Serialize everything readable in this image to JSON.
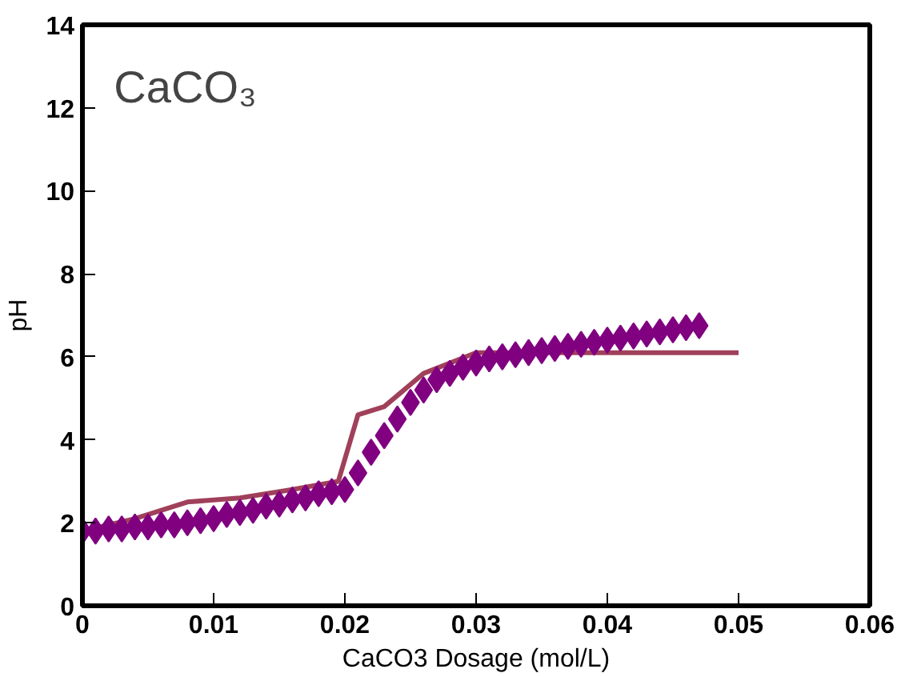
{
  "chart_data": {
    "type": "scatter",
    "xlabel": "CaCO3 Dosage (mol/L)",
    "ylabel": "pH",
    "annotations": [
      "CaCO₃"
    ],
    "xlim": [
      0,
      0.06
    ],
    "xticks": [
      0,
      0.01,
      0.02,
      0.03,
      0.04,
      0.05,
      0.06
    ],
    "ylim": [
      0,
      14
    ],
    "yticks": [
      0,
      2,
      4,
      6,
      8,
      10,
      12,
      14
    ],
    "grid": false,
    "series": [
      {
        "type": "line",
        "color": "#a0405a",
        "x": [
          0,
          0.004,
          0.008,
          0.012,
          0.016,
          0.0195,
          0.021,
          0.023,
          0.026,
          0.03,
          0.04,
          0.05
        ],
        "values": [
          1.8,
          2.1,
          2.5,
          2.6,
          2.8,
          3.0,
          4.6,
          4.8,
          5.6,
          6.1,
          6.1,
          6.1
        ]
      },
      {
        "color": "#800080",
        "marker": "diamond",
        "x": [
          0,
          0.001,
          0.002,
          0.003,
          0.004,
          0.005,
          0.006,
          0.007,
          0.008,
          0.009,
          0.01,
          0.011,
          0.012,
          0.013,
          0.014,
          0.015,
          0.016,
          0.017,
          0.018,
          0.019,
          0.02,
          0.021,
          0.022,
          0.023,
          0.024,
          0.025,
          0.026,
          0.027,
          0.028,
          0.029,
          0.03,
          0.031,
          0.032,
          0.033,
          0.034,
          0.035,
          0.036,
          0.037,
          0.038,
          0.039,
          0.04,
          0.041,
          0.042,
          0.043,
          0.044,
          0.045,
          0.046,
          0.047
        ],
        "values": [
          1.8,
          1.8,
          1.85,
          1.85,
          1.9,
          1.9,
          1.95,
          1.95,
          2.0,
          2.05,
          2.1,
          2.2,
          2.25,
          2.3,
          2.4,
          2.45,
          2.55,
          2.6,
          2.7,
          2.75,
          2.8,
          3.2,
          3.7,
          4.1,
          4.5,
          4.9,
          5.2,
          5.45,
          5.6,
          5.75,
          5.85,
          5.95,
          6.0,
          6.05,
          6.1,
          6.15,
          6.2,
          6.25,
          6.3,
          6.35,
          6.4,
          6.45,
          6.5,
          6.55,
          6.6,
          6.65,
          6.7,
          6.75
        ]
      }
    ]
  }
}
